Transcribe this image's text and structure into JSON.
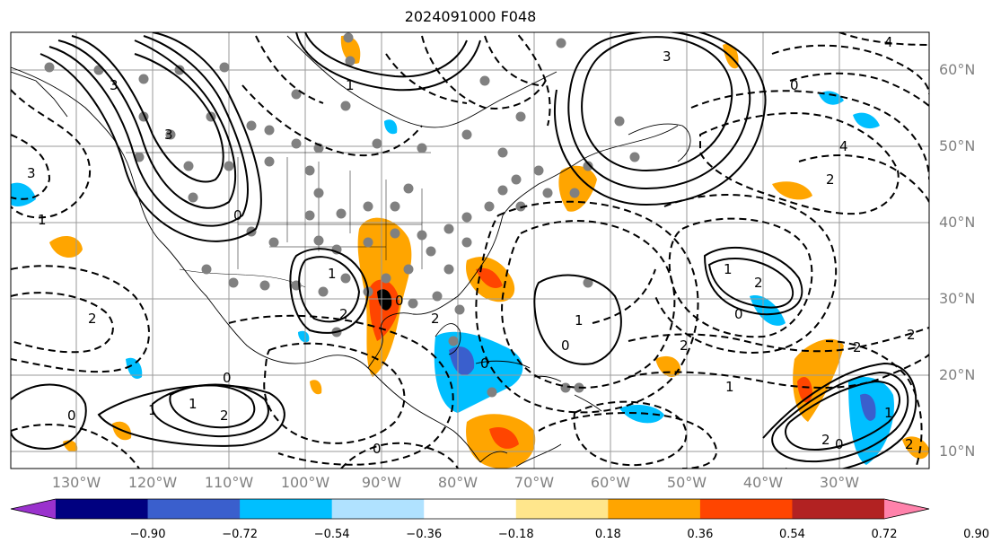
{
  "title": "2024091000 F048",
  "lat_labels": [
    "60°N",
    "50°N",
    "40°N",
    "30°N",
    "20°N",
    "10°N"
  ],
  "lon_labels": [
    "130°W",
    "120°W",
    "110°W",
    "100°W",
    "90°W",
    "80°W",
    "70°W",
    "60°W",
    "50°W",
    "40°W",
    "30°W"
  ],
  "colorbar": {
    "colors": [
      "#9a32cd",
      "#000080",
      "#3a5fcd",
      "#00bfff",
      "#b0e2ff",
      "#ffffff",
      "#ffe68c",
      "#ffa500",
      "#ff4500",
      "#b22222",
      "#ff82ab"
    ],
    "ticks": [
      "−0.90",
      "−0.72",
      "−0.54",
      "−0.36",
      "−0.18",
      "0.18",
      "0.36",
      "0.54",
      "0.72",
      "0.90"
    ],
    "extend": "both"
  },
  "contour_labels": [
    "4",
    "3",
    "2",
    "1",
    "0",
    "1",
    "2",
    "3",
    "4",
    "1",
    "2",
    "1",
    "0",
    "0",
    "1",
    "2",
    "2",
    "1",
    "0",
    "0",
    "1",
    "2",
    "0",
    "1",
    "2",
    "1",
    "1",
    "0",
    "2",
    "1",
    "2"
  ]
}
